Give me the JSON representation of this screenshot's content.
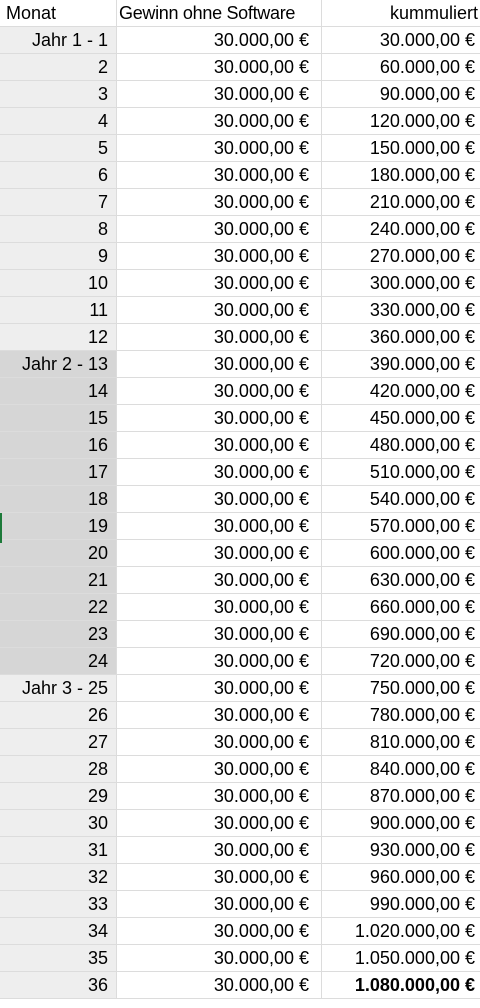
{
  "headers": [
    "Monat",
    "Gewinn ohne Software",
    "kummuliert"
  ],
  "rows": [
    [
      "Jahr 1 - 1",
      "30.000,00 €",
      "30.000,00 €"
    ],
    [
      "2",
      "30.000,00 €",
      "60.000,00 €"
    ],
    [
      "3",
      "30.000,00 €",
      "90.000,00 €"
    ],
    [
      "4",
      "30.000,00 €",
      "120.000,00 €"
    ],
    [
      "5",
      "30.000,00 €",
      "150.000,00 €"
    ],
    [
      "6",
      "30.000,00 €",
      "180.000,00 €"
    ],
    [
      "7",
      "30.000,00 €",
      "210.000,00 €"
    ],
    [
      "8",
      "30.000,00 €",
      "240.000,00 €"
    ],
    [
      "9",
      "30.000,00 €",
      "270.000,00 €"
    ],
    [
      "10",
      "30.000,00 €",
      "300.000,00 €"
    ],
    [
      "11",
      "30.000,00 €",
      "330.000,00 €"
    ],
    [
      "12",
      "30.000,00 €",
      "360.000,00 €"
    ],
    [
      "Jahr 2 - 13",
      "30.000,00 €",
      "390.000,00 €"
    ],
    [
      "14",
      "30.000,00 €",
      "420.000,00 €"
    ],
    [
      "15",
      "30.000,00 €",
      "450.000,00 €"
    ],
    [
      "16",
      "30.000,00 €",
      "480.000,00 €"
    ],
    [
      "17",
      "30.000,00 €",
      "510.000,00 €"
    ],
    [
      "18",
      "30.000,00 €",
      "540.000,00 €"
    ],
    [
      "19",
      "30.000,00 €",
      "570.000,00 €"
    ],
    [
      "20",
      "30.000,00 €",
      "600.000,00 €"
    ],
    [
      "21",
      "30.000,00 €",
      "630.000,00 €"
    ],
    [
      "22",
      "30.000,00 €",
      "660.000,00 €"
    ],
    [
      "23",
      "30.000,00 €",
      "690.000,00 €"
    ],
    [
      "24",
      "30.000,00 €",
      "720.000,00 €"
    ],
    [
      "Jahr 3 - 25",
      "30.000,00 €",
      "750.000,00 €"
    ],
    [
      "26",
      "30.000,00 €",
      "780.000,00 €"
    ],
    [
      "27",
      "30.000,00 €",
      "810.000,00 €"
    ],
    [
      "28",
      "30.000,00 €",
      "840.000,00 €"
    ],
    [
      "29",
      "30.000,00 €",
      "870.000,00 €"
    ],
    [
      "30",
      "30.000,00 €",
      "900.000,00 €"
    ],
    [
      "31",
      "30.000,00 €",
      "930.000,00 €"
    ],
    [
      "32",
      "30.000,00 €",
      "960.000,00 €"
    ],
    [
      "33",
      "30.000,00 €",
      "990.000,00 €"
    ],
    [
      "34",
      "30.000,00 €",
      "1.020.000,00 €"
    ],
    [
      "35",
      "30.000,00 €",
      "1.050.000,00 €"
    ],
    [
      "36",
      "30.000,00 €",
      "1.080.000,00 €"
    ]
  ],
  "year_shading": [
    "#eeeeee",
    "#d6d6d6",
    "#eeeeee"
  ],
  "selection_color": "#1d7a3a"
}
